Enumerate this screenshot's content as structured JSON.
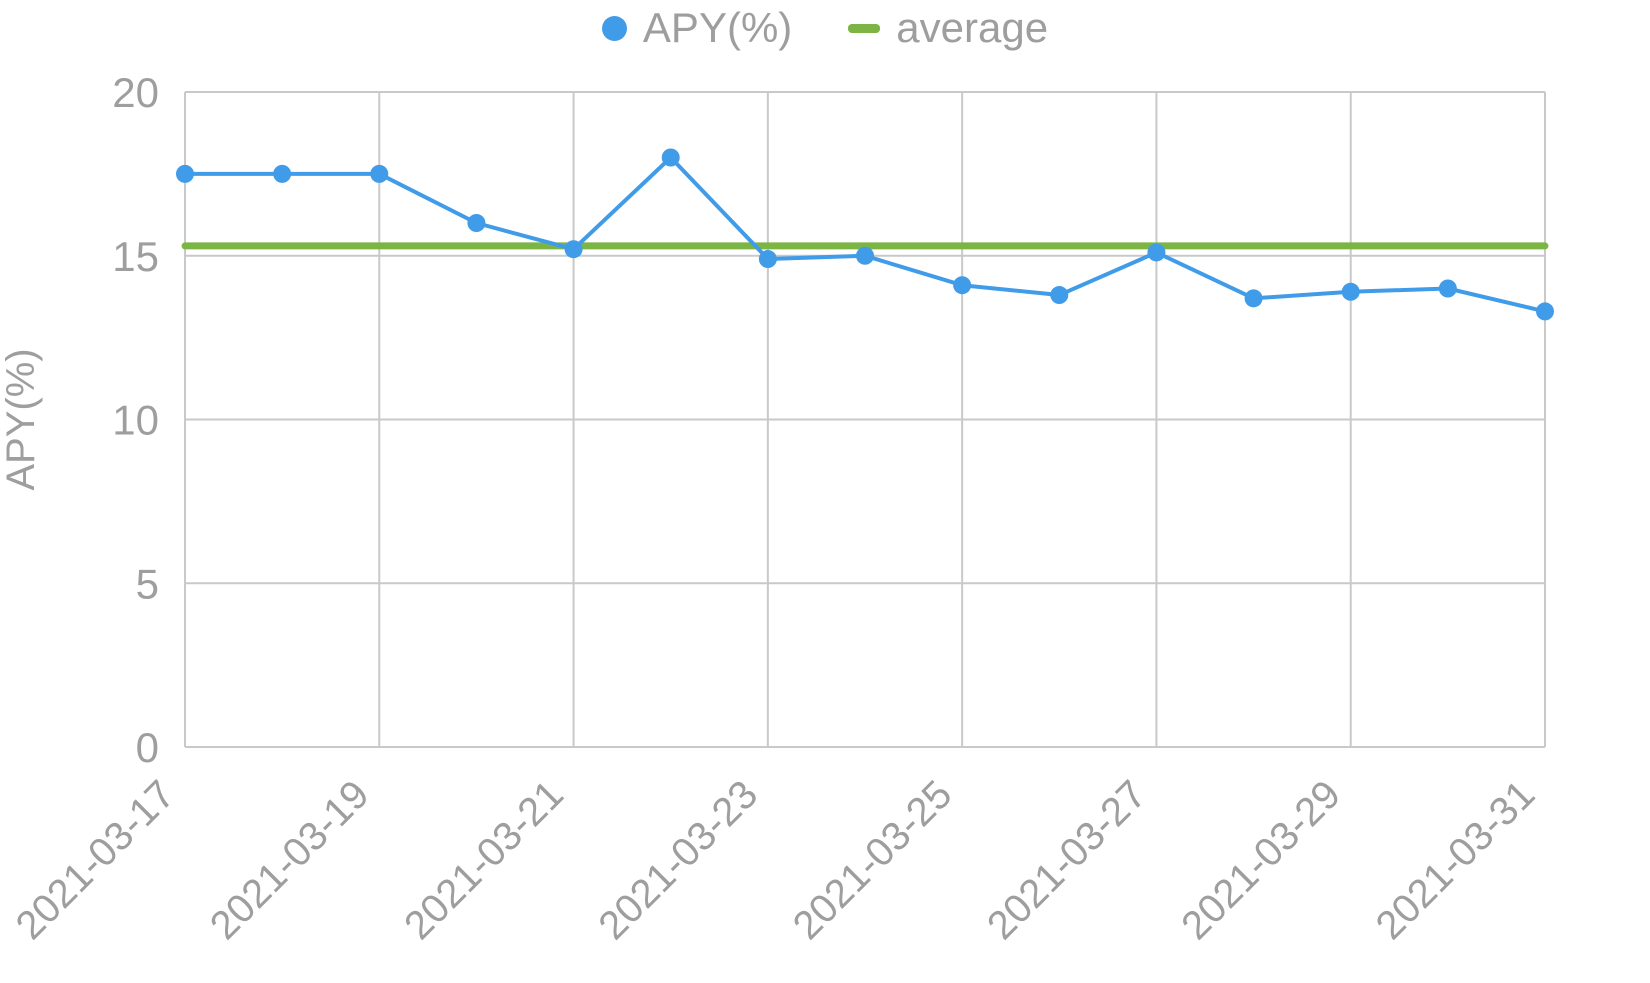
{
  "chart_data": {
    "type": "line",
    "title": "",
    "xlabel": "",
    "ylabel": "APY(%)",
    "ylim": [
      0,
      20
    ],
    "yticks": [
      0,
      5,
      10,
      15,
      20
    ],
    "grid": true,
    "legend_position": "top",
    "grid_color": "#c9c9c9",
    "tick_color": "#9e9e9e",
    "x": [
      "2021-03-17",
      "2021-03-18",
      "2021-03-19",
      "2021-03-20",
      "2021-03-21",
      "2021-03-22",
      "2021-03-23",
      "2021-03-24",
      "2021-03-25",
      "2021-03-26",
      "2021-03-27",
      "2021-03-28",
      "2021-03-29",
      "2021-03-30",
      "2021-03-31"
    ],
    "x_labeled_ticks": [
      "2021-03-17",
      "2021-03-19",
      "2021-03-21",
      "2021-03-23",
      "2021-03-25",
      "2021-03-27",
      "2021-03-29",
      "2021-03-31"
    ],
    "series": [
      {
        "name": "APY(%)",
        "type": "line",
        "marker": "circle",
        "color": "#409ce8",
        "values": [
          17.5,
          17.5,
          17.5,
          16.0,
          15.2,
          18.0,
          14.9,
          15.0,
          14.1,
          13.8,
          15.1,
          13.7,
          13.9,
          14.0,
          13.3
        ]
      },
      {
        "name": "average",
        "type": "constant-line",
        "marker": "dash",
        "color": "#7cb544",
        "constant": 15.3
      }
    ]
  }
}
